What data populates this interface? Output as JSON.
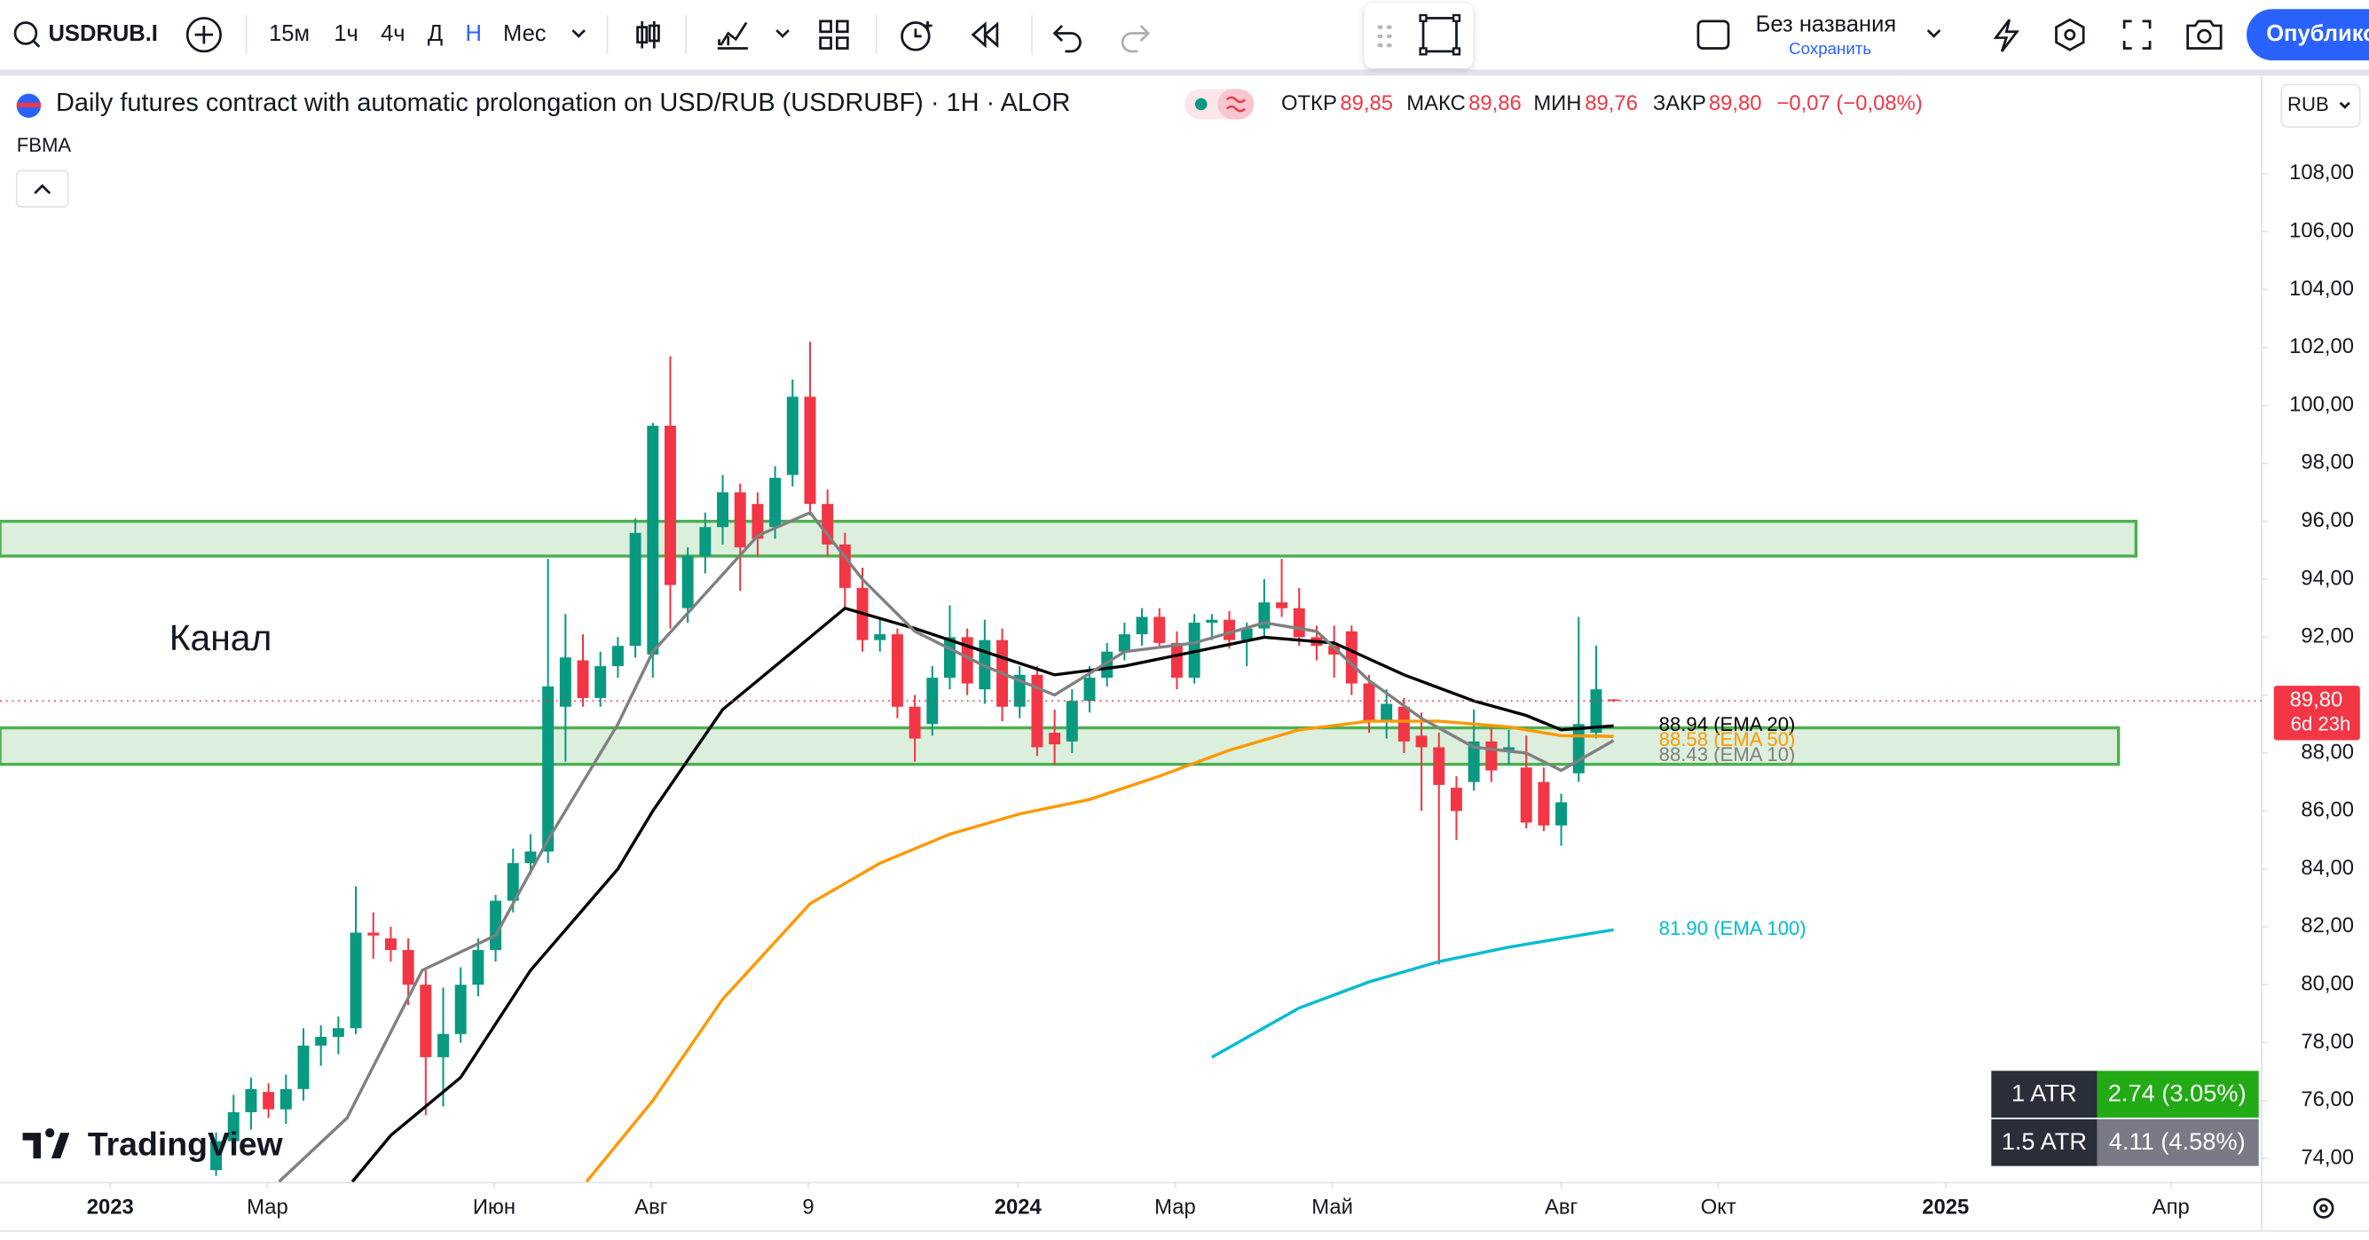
{
  "toolbar": {
    "symbol": "USDRUB.I",
    "intervals": [
      "15м",
      "1ч",
      "4ч",
      "Д",
      "Н",
      "Мес"
    ],
    "layout_name": "Без названия",
    "save": "Сохранить",
    "publish": "Опублико"
  },
  "legend": {
    "title": "Daily futures contract with automatic prolongation on USD/RUB (USDRUBF) · 1H · ALOR",
    "open_label": "ОТКР",
    "open": "89,85",
    "high_label": "МАКС",
    "high": "89,86",
    "low_label": "МИН",
    "low": "89,76",
    "close_label": "ЗАКР",
    "close": "89,80",
    "change": "−0,07 (−0,08%)",
    "indicator": "FBMA",
    "currency": "RUB"
  },
  "chart_data": {
    "type": "candlestick",
    "up_color": "#089981",
    "down_color": "#f23645",
    "open": [
      73.6,
      74.6,
      75.6,
      76.3,
      75.7,
      76.4,
      77.9,
      78.2,
      78.5,
      81.8,
      81.6,
      81.2,
      80.0,
      77.5,
      78.3,
      80.0,
      81.2,
      82.9,
      84.2,
      84.6,
      89.6,
      91.2,
      89.9,
      91.0,
      91.7,
      91.4,
      99.3,
      93.0,
      94.8,
      95.8,
      97.0,
      96.6,
      95.8,
      97.6,
      100.3,
      96.6,
      95.2,
      93.7,
      91.9,
      92.1,
      89.6,
      89.0,
      90.6,
      92.0,
      90.2,
      91.9,
      89.6,
      90.7,
      88.7,
      88.4,
      89.8,
      90.6,
      91.5,
      92.1,
      92.7,
      91.8,
      90.6,
      92.5,
      92.6,
      91.9,
      92.3,
      93.2,
      93.0,
      92.0,
      91.7,
      92.2,
      90.4,
      89.1,
      89.6,
      88.6,
      88.2,
      86.8,
      87.0,
      88.4,
      88.1,
      87.5,
      87.0,
      85.5,
      87.3,
      88.7,
      89.85
    ],
    "high": [
      74.9,
      76.2,
      76.8,
      76.6,
      76.9,
      78.5,
      78.6,
      78.9,
      83.4,
      82.5,
      82.0,
      81.6,
      80.5,
      79.9,
      80.6,
      81.6,
      83.1,
      84.7,
      85.2,
      94.7,
      92.8,
      92.1,
      91.5,
      92.0,
      96.1,
      99.4,
      101.7,
      95.1,
      96.3,
      97.6,
      97.3,
      97.0,
      97.9,
      100.9,
      102.2,
      97.1,
      95.6,
      94.4,
      92.6,
      92.3,
      90.0,
      91.0,
      93.1,
      92.3,
      92.6,
      92.3,
      91.0,
      91.0,
      89.5,
      90.2,
      91.0,
      91.8,
      92.5,
      93.0,
      93.0,
      92.2,
      92.8,
      92.8,
      92.9,
      92.5,
      94.0,
      94.7,
      93.7,
      92.4,
      92.4,
      92.4,
      90.7,
      90.2,
      89.9,
      89.4,
      88.7,
      87.2,
      89.5,
      89.0,
      88.8,
      88.6,
      87.5,
      86.6,
      92.7,
      91.7,
      89.86
    ],
    "low": [
      73.4,
      74.2,
      75.0,
      75.4,
      75.2,
      76.0,
      77.2,
      77.6,
      78.3,
      80.9,
      80.8,
      79.3,
      75.5,
      75.8,
      78.0,
      79.6,
      80.8,
      82.5,
      83.8,
      84.2,
      87.7,
      89.6,
      89.6,
      90.6,
      91.3,
      90.6,
      92.3,
      92.5,
      94.2,
      95.2,
      93.6,
      94.8,
      95.4,
      97.2,
      96.2,
      94.8,
      93.0,
      91.5,
      91.5,
      89.2,
      87.7,
      88.6,
      90.2,
      90.0,
      89.7,
      89.1,
      89.2,
      87.9,
      87.6,
      88.0,
      89.4,
      90.3,
      91.2,
      91.7,
      91.6,
      90.2,
      90.4,
      91.9,
      91.6,
      91.0,
      92.0,
      92.7,
      91.7,
      91.2,
      90.6,
      90.0,
      88.7,
      88.5,
      88.0,
      86.0,
      80.7,
      85.0,
      86.7,
      87.0,
      87.6,
      85.4,
      85.3,
      84.8,
      87.0,
      88.5,
      89.76
    ],
    "close": [
      74.6,
      75.6,
      76.4,
      75.7,
      76.4,
      77.9,
      78.2,
      78.5,
      81.8,
      81.7,
      81.2,
      80.0,
      77.5,
      78.3,
      80.0,
      81.2,
      82.9,
      84.2,
      84.6,
      90.3,
      91.3,
      89.9,
      91.0,
      91.7,
      95.6,
      99.3,
      93.8,
      94.8,
      95.8,
      97.0,
      95.1,
      95.4,
      97.5,
      100.3,
      96.6,
      95.2,
      93.7,
      91.9,
      92.1,
      89.6,
      88.5,
      90.6,
      92.0,
      90.4,
      91.9,
      89.6,
      90.7,
      88.2,
      88.3,
      89.8,
      90.6,
      91.5,
      92.1,
      92.7,
      91.8,
      90.6,
      92.5,
      92.6,
      91.9,
      92.3,
      93.2,
      93.0,
      92.0,
      91.7,
      91.4,
      90.4,
      89.1,
      89.7,
      88.4,
      88.2,
      86.9,
      86.0,
      88.4,
      87.4,
      88.2,
      85.6,
      85.5,
      86.3,
      89.0,
      90.2,
      89.8
    ],
    "xlim": [
      -12.37,
      117.1
    ],
    "ylim": [
      73.17,
      111.39
    ],
    "xticks": [
      {
        "value": -6.06,
        "label": "2023"
      },
      {
        "value": 2.94,
        "label": "Мар"
      },
      {
        "value": 15.92,
        "label": "Июн"
      },
      {
        "value": 24.9,
        "label": "Авг"
      },
      {
        "value": 33.9,
        "label": "9"
      },
      {
        "value": 45.9,
        "label": "2024"
      },
      {
        "value": 54.9,
        "label": "Мар"
      },
      {
        "value": 63.9,
        "label": "Май"
      },
      {
        "value": 77.0,
        "label": "Авг"
      },
      {
        "value": 86.0,
        "label": "Окт"
      },
      {
        "value": 99.0,
        "label": "2025"
      },
      {
        "value": 111.9,
        "label": "Апр"
      }
    ],
    "yticks": [
      {
        "value": 74,
        "label": "74,00"
      },
      {
        "value": 76,
        "label": "76,00"
      },
      {
        "value": 78,
        "label": "78,00"
      },
      {
        "value": 80,
        "label": "80,00"
      },
      {
        "value": 82,
        "label": "82,00"
      },
      {
        "value": 84,
        "label": "84,00"
      },
      {
        "value": 86,
        "label": "86,00"
      },
      {
        "value": 88,
        "label": "88,00"
      },
      {
        "value": 90,
        "label": "90,00"
      },
      {
        "value": 92,
        "label": "92,00"
      },
      {
        "value": 94,
        "label": "94,00"
      },
      {
        "value": 96,
        "label": "96,00"
      },
      {
        "value": 98,
        "label": "98,00"
      },
      {
        "value": 100,
        "label": "100,00"
      },
      {
        "value": 102,
        "label": "102,00"
      },
      {
        "value": 104,
        "label": "104,00"
      },
      {
        "value": 106,
        "label": "106,00"
      },
      {
        "value": 108,
        "label": "108,00"
      }
    ],
    "series": [
      {
        "name": "EMA 20",
        "label": "88.94 (EMA 20)",
        "color": "#000000",
        "x": [
          7.8,
          10,
          14,
          18,
          23,
          25,
          29,
          33,
          36,
          40,
          44,
          48,
          52,
          56,
          60,
          64,
          68,
          72,
          75,
          77,
          80
        ],
        "values": [
          73.2,
          74.8,
          76.8,
          80.5,
          84.0,
          86.0,
          89.5,
          91.5,
          93.0,
          92.3,
          91.5,
          90.7,
          91.0,
          91.5,
          92.0,
          91.8,
          90.7,
          89.8,
          89.3,
          88.8,
          88.94
        ]
      },
      {
        "name": "EMA 50",
        "label": "88.58 (EMA 50)",
        "color": "#ff9800",
        "x": [
          21.2,
          25,
          29,
          34,
          38,
          42,
          46,
          50,
          54,
          58,
          62,
          66,
          70,
          74,
          77,
          80
        ],
        "values": [
          73.2,
          76.0,
          79.5,
          82.8,
          84.2,
          85.2,
          85.9,
          86.4,
          87.2,
          88.1,
          88.8,
          89.1,
          89.1,
          88.9,
          88.6,
          88.58
        ]
      },
      {
        "name": "EMA 10",
        "label": "88.43 (EMA 10)",
        "color": "#808080",
        "x": [
          3.6,
          7.5,
          11.8,
          16,
          19,
          23,
          25,
          28,
          31,
          34,
          37,
          40,
          44,
          48,
          52,
          56,
          60,
          63,
          66,
          69,
          72,
          75,
          77,
          80
        ],
        "values": [
          73.2,
          75.4,
          80.5,
          81.7,
          85.0,
          89.0,
          91.5,
          93.5,
          95.5,
          96.3,
          94.0,
          92.2,
          91.0,
          90.0,
          91.5,
          91.8,
          92.5,
          92.2,
          90.5,
          89.2,
          88.2,
          88.0,
          87.4,
          88.43
        ]
      },
      {
        "name": "EMA 100",
        "label": "81.90 (EMA 100)",
        "color": "#00bcd4",
        "x": [
          57,
          62,
          66,
          70,
          74,
          77,
          80
        ],
        "values": [
          77.5,
          79.2,
          80.1,
          80.8,
          81.3,
          81.6,
          81.9
        ]
      }
    ],
    "zones": [
      {
        "top": 96.0,
        "bottom": 94.8,
        "end": 109.9
      },
      {
        "top": 88.87,
        "bottom": 87.61,
        "end": 108.9
      }
    ],
    "annotations": [
      "Канал"
    ],
    "last_price": {
      "value": 89.8,
      "label": "89,80",
      "countdown": "6d 23h"
    }
  },
  "atr_table": {
    "rows": [
      [
        "1 ATR",
        "2.74 (3.05%)"
      ],
      [
        "1.5 ATR",
        "4.11 (4.58%)"
      ]
    ]
  },
  "logo": "TradingView"
}
